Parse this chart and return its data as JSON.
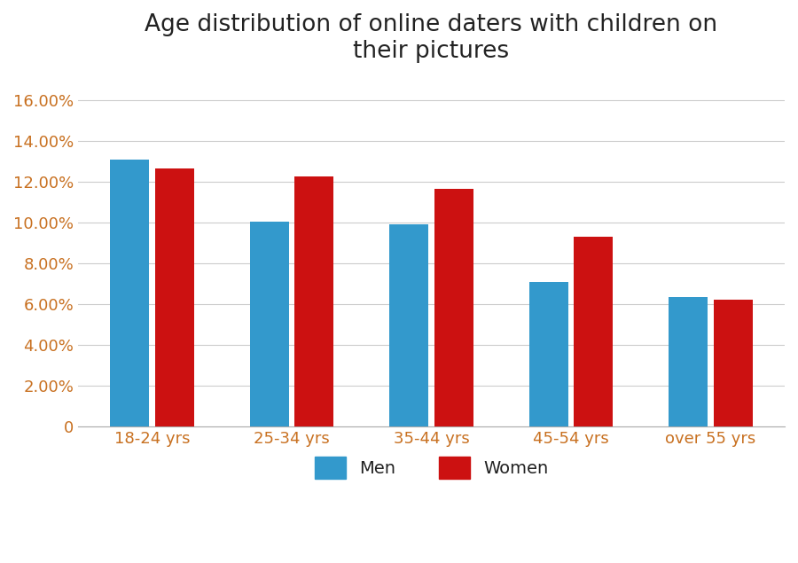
{
  "title": "Age distribution of online daters with children on\ntheir pictures",
  "categories": [
    "18-24 yrs",
    "25-34 yrs",
    "35-44 yrs",
    "45-54 yrs",
    "over 55 yrs"
  ],
  "men_values": [
    0.131,
    0.1005,
    0.099,
    0.071,
    0.0635
  ],
  "women_values": [
    0.1265,
    0.1225,
    0.1165,
    0.093,
    0.062
  ],
  "men_color": "#3399CC",
  "women_color": "#CC1111",
  "background_color": "#FFFFFF",
  "ylim": [
    0,
    0.17
  ],
  "yticks": [
    0,
    0.02,
    0.04,
    0.06,
    0.08,
    0.1,
    0.12,
    0.14,
    0.16
  ],
  "title_fontsize": 19,
  "tick_fontsize": 13,
  "legend_fontsize": 14,
  "bar_width": 0.28,
  "bar_gap": 0.04,
  "grid_color": "#CCCCCC",
  "title_color": "#222222",
  "tick_color": "#C87020",
  "axis_color": "#AAAAAA"
}
